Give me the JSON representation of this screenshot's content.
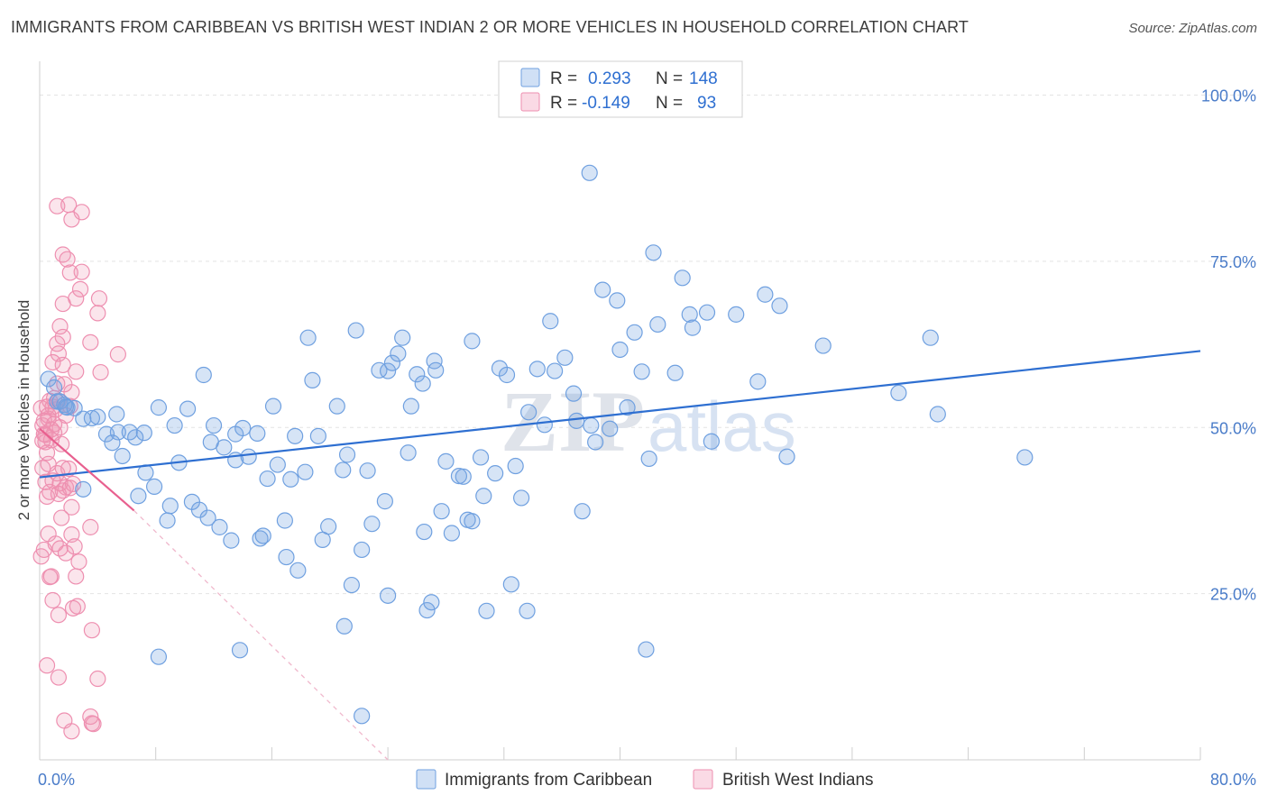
{
  "title": "IMMIGRANTS FROM CARIBBEAN VS BRITISH WEST INDIAN 2 OR MORE VEHICLES IN HOUSEHOLD CORRELATION CHART",
  "source": "Source: ZipAtlas.com",
  "watermark": "ZIPatlas",
  "colors": {
    "blue": "#6fa0e0",
    "blue_fill": "rgba(120,165,225,0.30)",
    "blue_line": "#2e6fd1",
    "pink": "#ee8fb0",
    "pink_fill": "rgba(240,150,180,0.25)",
    "pink_line": "#e8608f",
    "tick_text": "#4a7cc9"
  },
  "legend_box": {
    "rows": [
      {
        "r_label": "R =",
        "r_value": "0.293",
        "n_label": "N =",
        "n_value": "148"
      },
      {
        "r_label": "R =",
        "r_value": "-0.149",
        "n_label": "N =",
        "n_value": "93"
      }
    ]
  },
  "bottom_legend": [
    "Immigrants from Caribbean",
    "British West Indians"
  ],
  "chart_data": {
    "type": "scatter",
    "title": "IMMIGRANTS FROM CARIBBEAN VS BRITISH WEST INDIAN 2 OR MORE VEHICLES IN HOUSEHOLD CORRELATION CHART",
    "xlabel": "",
    "ylabel": "2 or more Vehicles in Household",
    "xlim": [
      0,
      80
    ],
    "ylim": [
      0,
      104
    ],
    "x_tick_labels": [
      "0.0%",
      "80.0%"
    ],
    "y_tick_labels": [
      "25.0%",
      "50.0%",
      "75.0%",
      "100.0%"
    ],
    "y_ticks": [
      25,
      50,
      75,
      100
    ],
    "grid": true,
    "legend_position": "top-center",
    "series": [
      {
        "name": "Immigrants from Caribbean",
        "R": 0.293,
        "N": 148,
        "trend": [
          [
            0,
            42.5
          ],
          [
            80,
            61.5
          ]
        ],
        "points": [
          [
            0.6,
            57.3
          ],
          [
            1.0,
            56.0
          ],
          [
            1.2,
            53.9
          ],
          [
            1.7,
            53.4
          ],
          [
            1.4,
            53.9
          ],
          [
            1.9,
            53.0
          ],
          [
            3.0,
            51.3
          ],
          [
            3.6,
            51.4
          ],
          [
            4.0,
            51.6
          ],
          [
            4.6,
            49.0
          ],
          [
            5.3,
            52.0
          ],
          [
            5.4,
            49.3
          ],
          [
            6.2,
            49.3
          ],
          [
            6.6,
            48.5
          ],
          [
            5.0,
            47.7
          ],
          [
            5.7,
            45.7
          ],
          [
            7.2,
            49.2
          ],
          [
            3.0,
            40.7
          ],
          [
            6.8,
            39.7
          ],
          [
            7.3,
            43.2
          ],
          [
            7.9,
            41.1
          ],
          [
            8.2,
            53.0
          ],
          [
            8.8,
            36.0
          ],
          [
            9.0,
            38.2
          ],
          [
            9.3,
            50.3
          ],
          [
            9.6,
            44.7
          ],
          [
            10.2,
            52.8
          ],
          [
            10.5,
            38.8
          ],
          [
            11.0,
            37.6
          ],
          [
            11.3,
            57.9
          ],
          [
            11.6,
            36.4
          ],
          [
            11.8,
            47.8
          ],
          [
            12.0,
            50.3
          ],
          [
            12.4,
            35.0
          ],
          [
            12.7,
            47.0
          ],
          [
            13.2,
            33.0
          ],
          [
            13.5,
            49.0
          ],
          [
            13.5,
            45.1
          ],
          [
            14.0,
            49.9
          ],
          [
            14.4,
            45.6
          ],
          [
            15.0,
            49.1
          ],
          [
            15.2,
            33.3
          ],
          [
            15.4,
            33.7
          ],
          [
            15.7,
            42.3
          ],
          [
            16.1,
            53.2
          ],
          [
            16.4,
            44.4
          ],
          [
            16.9,
            36.0
          ],
          [
            17.0,
            30.5
          ],
          [
            17.3,
            42.2
          ],
          [
            17.6,
            48.7
          ],
          [
            17.8,
            28.5
          ],
          [
            18.3,
            43.3
          ],
          [
            18.5,
            63.5
          ],
          [
            18.8,
            57.1
          ],
          [
            19.2,
            48.7
          ],
          [
            19.5,
            33.1
          ],
          [
            19.9,
            35.1
          ],
          [
            20.5,
            53.2
          ],
          [
            20.9,
            43.6
          ],
          [
            21.2,
            45.9
          ],
          [
            21.5,
            26.3
          ],
          [
            21.8,
            64.6
          ],
          [
            22.2,
            31.6
          ],
          [
            22.6,
            43.5
          ],
          [
            22.9,
            35.5
          ],
          [
            23.4,
            58.6
          ],
          [
            23.8,
            38.9
          ],
          [
            24.0,
            58.5
          ],
          [
            24.3,
            59.7
          ],
          [
            24.7,
            61.1
          ],
          [
            25.0,
            63.5
          ],
          [
            25.4,
            46.2
          ],
          [
            25.6,
            53.2
          ],
          [
            26.0,
            58.0
          ],
          [
            26.4,
            56.6
          ],
          [
            26.7,
            22.5
          ],
          [
            27.2,
            60.0
          ],
          [
            27.3,
            58.6
          ],
          [
            27.7,
            37.4
          ],
          [
            28.0,
            44.9
          ],
          [
            28.4,
            34.1
          ],
          [
            28.9,
            42.7
          ],
          [
            29.2,
            42.6
          ],
          [
            29.5,
            36.1
          ],
          [
            29.8,
            35.9
          ],
          [
            30.4,
            45.5
          ],
          [
            30.6,
            39.7
          ],
          [
            30.8,
            22.4
          ],
          [
            31.4,
            43.1
          ],
          [
            31.7,
            58.9
          ],
          [
            32.2,
            57.9
          ],
          [
            32.5,
            26.4
          ],
          [
            32.8,
            44.2
          ],
          [
            33.2,
            39.4
          ],
          [
            33.7,
            52.3
          ],
          [
            34.3,
            58.8
          ],
          [
            34.8,
            50.4
          ],
          [
            35.2,
            66.0
          ],
          [
            35.5,
            58.5
          ],
          [
            36.2,
            60.5
          ],
          [
            36.8,
            55.1
          ],
          [
            37.0,
            51.0
          ],
          [
            37.4,
            37.4
          ],
          [
            38.0,
            50.3
          ],
          [
            38.3,
            47.8
          ],
          [
            38.8,
            70.7
          ],
          [
            39.3,
            49.8
          ],
          [
            39.8,
            69.1
          ],
          [
            40.0,
            61.7
          ],
          [
            40.5,
            53.0
          ],
          [
            41.0,
            64.3
          ],
          [
            41.5,
            58.4
          ],
          [
            41.8,
            16.6
          ],
          [
            42.0,
            45.3
          ],
          [
            42.3,
            76.3
          ],
          [
            42.6,
            65.5
          ],
          [
            43.8,
            58.2
          ],
          [
            44.3,
            72.5
          ],
          [
            44.8,
            67.0
          ],
          [
            45.0,
            65.0
          ],
          [
            46.0,
            67.3
          ],
          [
            46.3,
            47.9
          ],
          [
            48.0,
            67.0
          ],
          [
            49.5,
            56.9
          ],
          [
            50.0,
            70.0
          ],
          [
            51.0,
            68.3
          ],
          [
            51.5,
            45.6
          ],
          [
            54.0,
            62.3
          ],
          [
            59.2,
            55.2
          ],
          [
            61.4,
            63.5
          ],
          [
            61.9,
            52.0
          ],
          [
            67.9,
            45.5
          ],
          [
            37.9,
            88.3
          ],
          [
            8.2,
            15.5
          ],
          [
            13.8,
            16.5
          ],
          [
            21.0,
            20.1
          ],
          [
            22.2,
            6.6
          ],
          [
            24.0,
            24.7
          ],
          [
            27.0,
            23.7
          ],
          [
            33.6,
            22.4
          ],
          [
            1.8,
            53.1
          ],
          [
            2.4,
            52.9
          ],
          [
            29.8,
            63.0
          ],
          [
            26.5,
            34.3
          ]
        ]
      },
      {
        "name": "British West Indians",
        "R": -0.149,
        "N": 93,
        "trend": [
          [
            0,
            49.8
          ],
          [
            6.5,
            37.5
          ]
        ],
        "trend_extension": [
          [
            6.5,
            37.5
          ],
          [
            24.0,
            0
          ]
        ],
        "points": [
          [
            0.1,
            52.9
          ],
          [
            0.2,
            50.3
          ],
          [
            0.3,
            49.0
          ],
          [
            0.4,
            47.8
          ],
          [
            0.5,
            46.2
          ],
          [
            0.6,
            51.3
          ],
          [
            0.7,
            54.0
          ],
          [
            0.8,
            48.1
          ],
          [
            0.9,
            53.1
          ],
          [
            1.0,
            49.2
          ],
          [
            0.2,
            43.9
          ],
          [
            0.4,
            41.8
          ],
          [
            0.5,
            39.6
          ],
          [
            0.7,
            40.3
          ],
          [
            1.2,
            43.1
          ],
          [
            1.4,
            41.6
          ],
          [
            1.6,
            40.5
          ],
          [
            1.8,
            41.0
          ],
          [
            2.0,
            43.8
          ],
          [
            2.2,
            38.0
          ],
          [
            0.3,
            31.6
          ],
          [
            0.6,
            34.0
          ],
          [
            0.8,
            27.6
          ],
          [
            1.1,
            32.5
          ],
          [
            1.4,
            31.8
          ],
          [
            1.8,
            31.1
          ],
          [
            2.2,
            33.9
          ],
          [
            2.4,
            32.1
          ],
          [
            2.7,
            29.8
          ],
          [
            0.9,
            24.0
          ],
          [
            1.3,
            21.8
          ],
          [
            2.3,
            22.8
          ],
          [
            2.6,
            23.1
          ],
          [
            0.5,
            14.2
          ],
          [
            1.3,
            12.4
          ],
          [
            3.6,
            19.5
          ],
          [
            4.0,
            12.2
          ],
          [
            1.7,
            5.9
          ],
          [
            2.2,
            4.3
          ],
          [
            3.5,
            6.5
          ],
          [
            3.6,
            5.5
          ],
          [
            3.7,
            5.4
          ],
          [
            1.2,
            83.3
          ],
          [
            2.0,
            83.5
          ],
          [
            2.9,
            82.4
          ],
          [
            2.2,
            81.3
          ],
          [
            1.6,
            76.0
          ],
          [
            1.9,
            75.3
          ],
          [
            2.9,
            73.4
          ],
          [
            2.1,
            73.3
          ],
          [
            2.8,
            70.8
          ],
          [
            2.5,
            69.4
          ],
          [
            4.1,
            69.4
          ],
          [
            1.6,
            68.6
          ],
          [
            4.0,
            67.2
          ],
          [
            1.4,
            65.2
          ],
          [
            1.6,
            63.6
          ],
          [
            3.5,
            62.8
          ],
          [
            1.2,
            62.6
          ],
          [
            1.3,
            61.1
          ],
          [
            0.9,
            59.8
          ],
          [
            1.6,
            59.4
          ],
          [
            5.4,
            61.0
          ],
          [
            2.5,
            58.4
          ],
          [
            4.2,
            58.3
          ],
          [
            1.2,
            56.6
          ],
          [
            1.7,
            56.5
          ],
          [
            2.2,
            55.3
          ],
          [
            1.0,
            54.4
          ],
          [
            1.3,
            54.0
          ],
          [
            2.1,
            53.2
          ],
          [
            0.5,
            53.1
          ],
          [
            1.1,
            52.7
          ],
          [
            1.8,
            51.8
          ],
          [
            0.6,
            51.8
          ],
          [
            0.3,
            51.0
          ],
          [
            1.0,
            50.5
          ],
          [
            1.4,
            50.0
          ],
          [
            0.8,
            49.7
          ],
          [
            0.4,
            48.9
          ],
          [
            2.1,
            40.9
          ],
          [
            1.3,
            40.0
          ],
          [
            3.5,
            35.0
          ],
          [
            0.7,
            27.5
          ],
          [
            1.5,
            36.4
          ],
          [
            0.9,
            42.0
          ],
          [
            0.1,
            30.6
          ],
          [
            2.3,
            41.5
          ],
          [
            0.2,
            48.0
          ],
          [
            1.5,
            47.5
          ],
          [
            0.6,
            44.5
          ],
          [
            1.6,
            43.9
          ],
          [
            2.5,
            27.6
          ]
        ]
      }
    ]
  }
}
